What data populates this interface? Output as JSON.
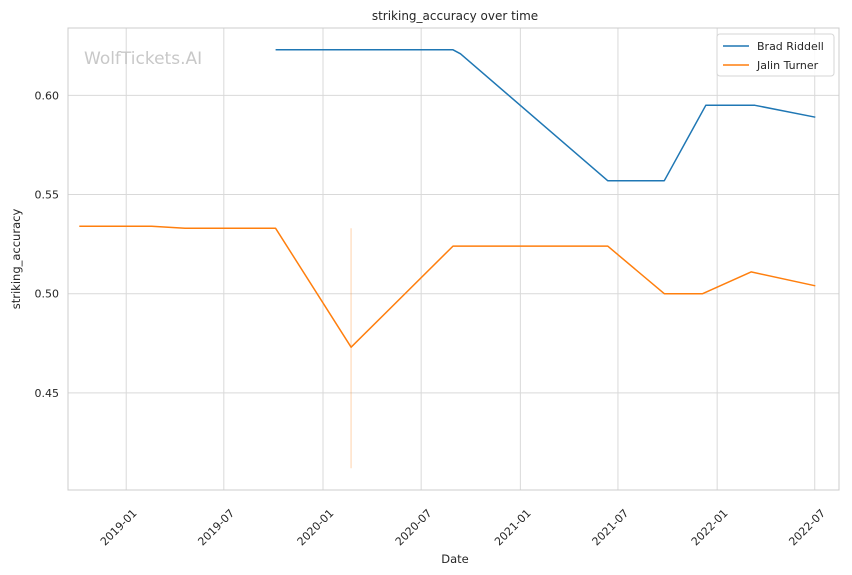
{
  "chart_data": {
    "type": "line",
    "title": "striking_accuracy over time",
    "xlabel": "Date",
    "ylabel": "striking_accuracy",
    "watermark": "WolfTickets.AI",
    "xlim": [
      "2018-09-15",
      "2022-08-15"
    ],
    "ylim": [
      0.401,
      0.634
    ],
    "x_ticks": [
      "2019-01",
      "2019-07",
      "2020-01",
      "2020-07",
      "2021-01",
      "2021-07",
      "2022-01",
      "2022-07"
    ],
    "y_ticks": [
      0.45,
      0.5,
      0.55,
      0.6
    ],
    "y_tick_labels": [
      "0.45",
      "0.50",
      "0.55",
      "0.60"
    ],
    "grid": true,
    "legend_position": "top-right",
    "series": [
      {
        "name": "Brad Riddell",
        "color": "#1f77b4",
        "points": [
          {
            "x": "2019-10-05",
            "y": 0.623
          },
          {
            "x": "2020-08-29",
            "y": 0.623
          },
          {
            "x": "2020-09-12",
            "y": 0.621
          },
          {
            "x": "2021-06-12",
            "y": 0.557
          },
          {
            "x": "2021-09-25",
            "y": 0.557
          },
          {
            "x": "2021-12-11",
            "y": 0.595
          },
          {
            "x": "2022-03-12",
            "y": 0.595
          },
          {
            "x": "2022-07-02",
            "y": 0.589
          }
        ]
      },
      {
        "name": "Jalin Turner",
        "color": "#ff7f0e",
        "points": [
          {
            "x": "2018-10-06",
            "y": 0.534
          },
          {
            "x": "2019-02-17",
            "y": 0.534
          },
          {
            "x": "2019-04-20",
            "y": 0.533
          },
          {
            "x": "2019-10-05",
            "y": 0.533
          },
          {
            "x": "2020-02-22",
            "y": 0.473
          },
          {
            "x": "2020-08-29",
            "y": 0.524
          },
          {
            "x": "2021-06-12",
            "y": 0.524
          },
          {
            "x": "2021-09-25",
            "y": 0.5
          },
          {
            "x": "2021-12-05",
            "y": 0.5
          },
          {
            "x": "2022-03-05",
            "y": 0.511
          },
          {
            "x": "2022-07-02",
            "y": 0.504
          }
        ],
        "error_bars": [
          {
            "x": "2020-02-22",
            "low": 0.412,
            "high": 0.533
          }
        ]
      }
    ]
  }
}
